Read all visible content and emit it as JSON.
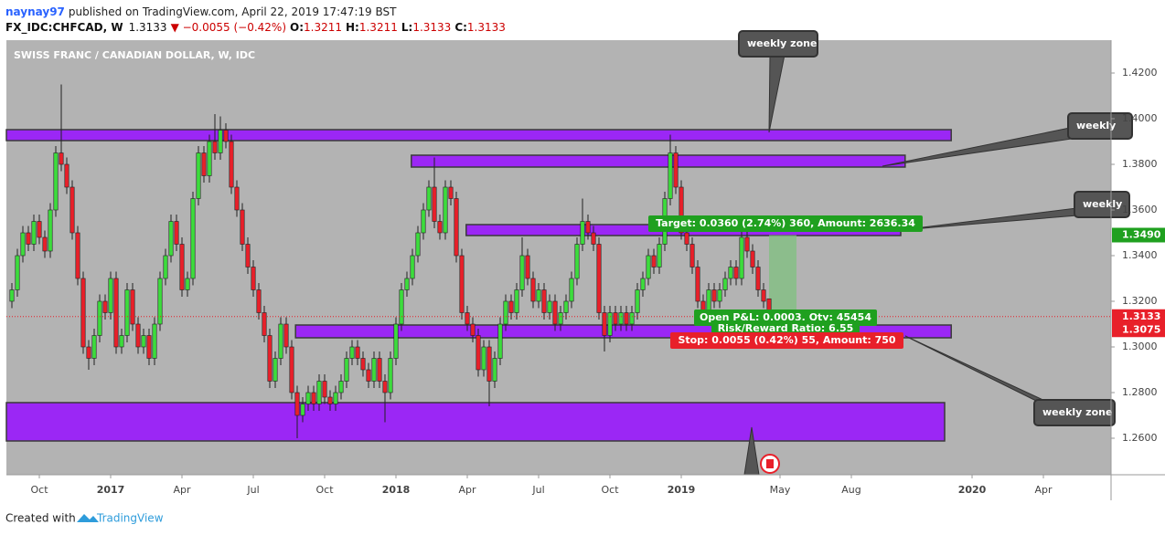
{
  "header": {
    "author": "naynay97",
    "published": "published on TradingView.com, April 22, 2019 17:47:19 BST",
    "symbol": "FX_IDC:CHFCAD, W",
    "last": "1.3133",
    "change": "▼ −0.0055 (−0.42%)",
    "fields": [
      {
        "label": "O:",
        "value": "1.3211"
      },
      {
        "label": "H:",
        "value": "1.3211"
      },
      {
        "label": "L:",
        "value": "1.3133"
      },
      {
        "label": "C:",
        "value": "1.3133"
      }
    ]
  },
  "chart_data": {
    "type": "candlestick",
    "title": "SWISS FRANC / CANADIAN DOLLAR, W, IDC",
    "x": [
      -5,
      -4,
      -3,
      -2,
      -1,
      0,
      1,
      2,
      3,
      4,
      5,
      6,
      7,
      8,
      9,
      10,
      11,
      12,
      13,
      14,
      15,
      16,
      17,
      18,
      19,
      20,
      21,
      22,
      23,
      24,
      25,
      26,
      27,
      28,
      29,
      30,
      31,
      32,
      33,
      34,
      35,
      36,
      37,
      38,
      39,
      40,
      41,
      42,
      43,
      44,
      45,
      46,
      47,
      48,
      49,
      50,
      51,
      52,
      53,
      54,
      55,
      56,
      57,
      58,
      59,
      60,
      61,
      62,
      63,
      64,
      65,
      66,
      67,
      68,
      69,
      70,
      71,
      72,
      73,
      74,
      75,
      76,
      77,
      78,
      79,
      80,
      81,
      82,
      83,
      84,
      85,
      86,
      87,
      88,
      89,
      90,
      91,
      92,
      93,
      94,
      95,
      96,
      97,
      98,
      99,
      100,
      101,
      102,
      103,
      104,
      105,
      106,
      107,
      108,
      109,
      110,
      111,
      112,
      113,
      114,
      115,
      116,
      117,
      118,
      119,
      120,
      121,
      122,
      123,
      124,
      125,
      126,
      127,
      128,
      129,
      130,
      131,
      132,
      133
    ],
    "open": [
      1.32,
      1.325,
      1.34,
      1.35,
      1.345,
      1.355,
      1.348,
      1.342,
      1.36,
      1.385,
      1.38,
      1.37,
      1.35,
      1.33,
      1.3,
      1.295,
      1.305,
      1.32,
      1.315,
      1.33,
      1.3,
      1.305,
      1.325,
      1.31,
      1.3,
      1.305,
      1.295,
      1.31,
      1.33,
      1.34,
      1.355,
      1.345,
      1.325,
      1.33,
      1.365,
      1.385,
      1.375,
      1.39,
      1.385,
      1.395,
      1.39,
      1.37,
      1.36,
      1.345,
      1.335,
      1.325,
      1.315,
      1.305,
      1.285,
      1.295,
      1.31,
      1.3,
      1.28,
      1.27,
      1.275,
      1.28,
      1.275,
      1.285,
      1.278,
      1.275,
      1.28,
      1.285,
      1.295,
      1.3,
      1.295,
      1.29,
      1.285,
      1.295,
      1.285,
      1.28,
      1.295,
      1.31,
      1.325,
      1.33,
      1.34,
      1.35,
      1.36,
      1.37,
      1.355,
      1.35,
      1.37,
      1.365,
      1.34,
      1.315,
      1.31,
      1.305,
      1.29,
      1.3,
      1.285,
      1.295,
      1.31,
      1.32,
      1.315,
      1.325,
      1.34,
      1.33,
      1.32,
      1.325,
      1.315,
      1.32,
      1.31,
      1.315,
      1.32,
      1.33,
      1.345,
      1.355,
      1.35,
      1.345,
      1.315,
      1.305,
      1.315,
      1.31,
      1.315,
      1.31,
      1.315,
      1.325,
      1.33,
      1.34,
      1.335,
      1.345,
      1.365,
      1.385,
      1.37,
      1.35,
      1.345,
      1.335,
      1.32,
      1.315,
      1.325,
      1.32,
      1.325,
      1.33,
      1.335,
      1.33,
      1.348,
      1.342,
      1.335,
      1.325,
      1.3211
    ],
    "high": [
      1.328,
      1.343,
      1.353,
      1.353,
      1.358,
      1.358,
      1.351,
      1.363,
      1.388,
      1.415,
      1.383,
      1.373,
      1.353,
      1.333,
      1.303,
      1.308,
      1.323,
      1.323,
      1.333,
      1.333,
      1.308,
      1.328,
      1.328,
      1.313,
      1.308,
      1.308,
      1.313,
      1.333,
      1.343,
      1.358,
      1.358,
      1.348,
      1.333,
      1.368,
      1.388,
      1.388,
      1.393,
      1.402,
      1.401,
      1.398,
      1.393,
      1.373,
      1.363,
      1.348,
      1.338,
      1.328,
      1.318,
      1.308,
      1.298,
      1.313,
      1.313,
      1.303,
      1.283,
      1.278,
      1.283,
      1.283,
      1.288,
      1.288,
      1.281,
      1.283,
      1.288,
      1.298,
      1.303,
      1.303,
      1.298,
      1.293,
      1.298,
      1.298,
      1.288,
      1.298,
      1.313,
      1.328,
      1.333,
      1.343,
      1.353,
      1.363,
      1.373,
      1.383,
      1.358,
      1.373,
      1.373,
      1.368,
      1.343,
      1.318,
      1.313,
      1.308,
      1.303,
      1.303,
      1.298,
      1.313,
      1.323,
      1.323,
      1.328,
      1.348,
      1.343,
      1.333,
      1.328,
      1.328,
      1.323,
      1.323,
      1.318,
      1.323,
      1.333,
      1.348,
      1.365,
      1.358,
      1.353,
      1.348,
      1.318,
      1.318,
      1.318,
      1.318,
      1.318,
      1.318,
      1.328,
      1.333,
      1.343,
      1.343,
      1.348,
      1.368,
      1.393,
      1.388,
      1.373,
      1.353,
      1.348,
      1.338,
      1.323,
      1.328,
      1.328,
      1.328,
      1.333,
      1.338,
      1.338,
      1.351,
      1.351,
      1.345,
      1.338,
      1.328,
      1.3211
    ],
    "low": [
      1.317,
      1.322,
      1.337,
      1.342,
      1.342,
      1.345,
      1.339,
      1.339,
      1.357,
      1.377,
      1.367,
      1.347,
      1.327,
      1.297,
      1.29,
      1.292,
      1.302,
      1.312,
      1.312,
      1.297,
      1.297,
      1.302,
      1.307,
      1.297,
      1.297,
      1.292,
      1.292,
      1.307,
      1.327,
      1.337,
      1.342,
      1.322,
      1.322,
      1.327,
      1.362,
      1.372,
      1.372,
      1.382,
      1.382,
      1.387,
      1.367,
      1.357,
      1.342,
      1.332,
      1.322,
      1.312,
      1.302,
      1.282,
      1.282,
      1.292,
      1.297,
      1.277,
      1.26,
      1.267,
      1.272,
      1.272,
      1.272,
      1.275,
      1.272,
      1.272,
      1.277,
      1.282,
      1.292,
      1.292,
      1.287,
      1.282,
      1.282,
      1.282,
      1.267,
      1.277,
      1.292,
      1.307,
      1.322,
      1.327,
      1.337,
      1.347,
      1.357,
      1.352,
      1.347,
      1.347,
      1.362,
      1.337,
      1.312,
      1.307,
      1.302,
      1.287,
      1.287,
      1.274,
      1.282,
      1.292,
      1.307,
      1.312,
      1.312,
      1.322,
      1.327,
      1.317,
      1.317,
      1.312,
      1.312,
      1.307,
      1.307,
      1.312,
      1.317,
      1.327,
      1.342,
      1.347,
      1.342,
      1.312,
      1.298,
      1.302,
      1.307,
      1.307,
      1.307,
      1.307,
      1.312,
      1.322,
      1.327,
      1.332,
      1.332,
      1.342,
      1.362,
      1.367,
      1.347,
      1.342,
      1.332,
      1.317,
      1.312,
      1.312,
      1.317,
      1.317,
      1.322,
      1.327,
      1.327,
      1.327,
      1.339,
      1.332,
      1.322,
      1.317,
      1.3133
    ],
    "close": [
      1.325,
      1.34,
      1.35,
      1.345,
      1.355,
      1.348,
      1.342,
      1.36,
      1.385,
      1.38,
      1.37,
      1.35,
      1.33,
      1.3,
      1.295,
      1.305,
      1.32,
      1.315,
      1.33,
      1.3,
      1.305,
      1.325,
      1.31,
      1.3,
      1.305,
      1.295,
      1.31,
      1.33,
      1.34,
      1.355,
      1.345,
      1.325,
      1.33,
      1.365,
      1.385,
      1.375,
      1.39,
      1.385,
      1.395,
      1.39,
      1.37,
      1.36,
      1.345,
      1.335,
      1.325,
      1.315,
      1.305,
      1.285,
      1.295,
      1.31,
      1.3,
      1.28,
      1.27,
      1.275,
      1.28,
      1.275,
      1.285,
      1.278,
      1.275,
      1.28,
      1.285,
      1.295,
      1.3,
      1.295,
      1.29,
      1.285,
      1.295,
      1.285,
      1.28,
      1.295,
      1.31,
      1.325,
      1.33,
      1.34,
      1.35,
      1.36,
      1.37,
      1.355,
      1.35,
      1.37,
      1.365,
      1.34,
      1.315,
      1.31,
      1.305,
      1.29,
      1.3,
      1.285,
      1.295,
      1.31,
      1.32,
      1.315,
      1.325,
      1.34,
      1.33,
      1.32,
      1.325,
      1.315,
      1.32,
      1.31,
      1.315,
      1.32,
      1.33,
      1.345,
      1.355,
      1.35,
      1.345,
      1.315,
      1.305,
      1.315,
      1.31,
      1.315,
      1.31,
      1.315,
      1.325,
      1.33,
      1.34,
      1.335,
      1.345,
      1.365,
      1.385,
      1.37,
      1.35,
      1.345,
      1.335,
      1.32,
      1.315,
      1.325,
      1.32,
      1.325,
      1.33,
      1.335,
      1.33,
      1.348,
      1.342,
      1.335,
      1.325,
      1.32,
      1.3133
    ],
    "up_color": "#3ddc3d",
    "down_color": "#e8202a",
    "xlim": [
      -6,
      195.33
    ],
    "xticks": [
      {
        "value": 0,
        "label": "Oct"
      },
      {
        "value": 13,
        "label": "2017"
      },
      {
        "value": 26,
        "label": "Apr"
      },
      {
        "value": 39,
        "label": "Jul"
      },
      {
        "value": 52,
        "label": "Oct"
      },
      {
        "value": 65,
        "label": "2018"
      },
      {
        "value": 78,
        "label": "Apr"
      },
      {
        "value": 91,
        "label": "Jul"
      },
      {
        "value": 104,
        "label": "Oct"
      },
      {
        "value": 117,
        "label": "2019"
      },
      {
        "value": 135,
        "label": "May"
      },
      {
        "value": 148,
        "label": "Aug"
      },
      {
        "value": 170,
        "label": "2020"
      },
      {
        "value": 183,
        "label": "Apr"
      }
    ],
    "ylim": [
      1.244,
      1.4344
    ],
    "yticks": [
      {
        "value": 1.26,
        "label": "1.2600"
      },
      {
        "value": 1.28,
        "label": "1.2800"
      },
      {
        "value": 1.3,
        "label": "1.3000"
      },
      {
        "value": 1.32,
        "label": "1.3200"
      },
      {
        "value": 1.34,
        "label": "1.3400"
      },
      {
        "value": 1.36,
        "label": "1.3600"
      },
      {
        "value": 1.38,
        "label": "1.3800"
      },
      {
        "value": 1.4,
        "label": "1.4000"
      },
      {
        "value": 1.42,
        "label": "1.4200"
      }
    ],
    "grid": false,
    "zone_color": "#9b27f5",
    "zones": [
      {
        "x": [
          -6,
          166.2
        ],
        "y": [
          1.3952,
          1.3904
        ]
      },
      {
        "x": [
          67.8,
          157.8
        ],
        "y": [
          1.384,
          1.3788
        ]
      },
      {
        "x": [
          77.8,
          157
        ],
        "y": [
          1.3536,
          1.3488
        ]
      },
      {
        "x": [
          46.7,
          166.2
        ],
        "y": [
          1.3096,
          1.304
        ]
      },
      {
        "x": [
          -6,
          165
        ],
        "y": [
          1.2756,
          1.2588
        ]
      }
    ],
    "position": {
      "x": [
        133,
        138
      ],
      "entry": 1.313,
      "target": 1.349,
      "stop": 1.3075,
      "value_labels": {
        "target": "1.3490"
      },
      "target_text": "Target: 0.0360 (2.74%) 360, Amount: 2636.34",
      "pnl_text": "Open P&L: 0.0003, Qty: 45454",
      "rr_text": "Risk/Reward Ratio: 6.55",
      "stop_text": "Stop: 0.0055 (0.42%) 55, Amount: 750"
    },
    "callouts": [
      "weekly zone",
      "weekly",
      "weekly",
      "weekly zone"
    ]
  },
  "footer": {
    "text": "Created with",
    "brand": "TradingView"
  }
}
